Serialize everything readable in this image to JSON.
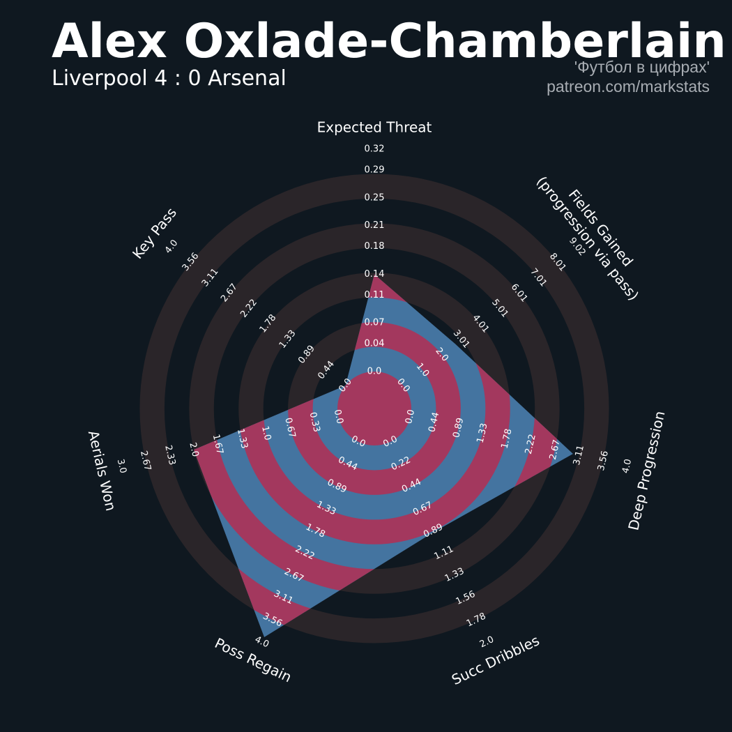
{
  "chart_data": {
    "type": "radar",
    "title": "Alex Oxlade-Chamberlain",
    "subtitle": "Liverpool 4 : 0 Arsenal",
    "credits": [
      "'Футбол в цифрах'",
      "patreon.com/markstats"
    ],
    "categories": [
      "Expected Threat",
      [
        "Fields Gained",
        "(progression via pass)"
      ],
      "Deep Progression",
      "Succ Dribbles",
      "Poss Regain",
      "Aerials Won",
      "Key Pass"
    ],
    "values": [
      0.14,
      2.7,
      3.0,
      0.9,
      3.9,
      2.0,
      0.0
    ],
    "color": "#4474a0",
    "highlight_color": "#a3385e",
    "ring_color": "#2a2529",
    "axes": [
      {
        "lim": [
          0,
          0.32
        ],
        "ticks": [
          {
            "value": 0,
            "label": "0.0"
          },
          0.04,
          0.07,
          0.11,
          0.14,
          0.18,
          0.21,
          0.25,
          0.29,
          0.32
        ]
      },
      {
        "lim": [
          0,
          9.02
        ],
        "ticks": [
          {
            "value": 0,
            "label": "0.0"
          },
          {
            "value": 1,
            "label": "1.0"
          },
          {
            "value": 2,
            "label": "2.0"
          },
          3.01,
          4.01,
          5.01,
          6.01,
          7.01,
          8.01,
          9.02
        ]
      },
      {
        "lim": [
          0,
          4
        ],
        "ticks": [
          {
            "value": 0,
            "label": "0.0"
          },
          0.44,
          0.89,
          1.33,
          1.78,
          2.22,
          2.67,
          3.11,
          3.56,
          {
            "value": 4,
            "label": "4.0"
          }
        ]
      },
      {
        "lim": [
          0,
          2
        ],
        "ticks": [
          {
            "value": 0,
            "label": "0.0"
          },
          0.22,
          0.44,
          0.67,
          0.89,
          1.11,
          1.33,
          1.56,
          1.78,
          {
            "value": 2,
            "label": "2.0"
          }
        ]
      },
      {
        "lim": [
          0,
          4
        ],
        "ticks": [
          {
            "value": 0,
            "label": "0.0"
          },
          0.44,
          0.89,
          1.33,
          1.78,
          2.22,
          2.67,
          3.11,
          3.56,
          {
            "value": 4,
            "label": "4.0"
          }
        ]
      },
      {
        "lim": [
          0,
          3
        ],
        "ticks": [
          {
            "value": 0,
            "label": "0.0"
          },
          0.33,
          0.67,
          {
            "value": 1,
            "label": "1.0"
          },
          1.33,
          1.67,
          {
            "value": 2,
            "label": "2.0"
          },
          2.33,
          2.67,
          {
            "value": 3,
            "label": "3.0"
          }
        ]
      },
      {
        "lim": [
          0,
          4
        ],
        "ticks": [
          {
            "value": 0,
            "label": "0.0"
          },
          0.44,
          0.89,
          1.33,
          1.78,
          2.22,
          2.67,
          3.11,
          3.56,
          {
            "value": 4,
            "label": "4.0"
          }
        ]
      }
    ]
  }
}
